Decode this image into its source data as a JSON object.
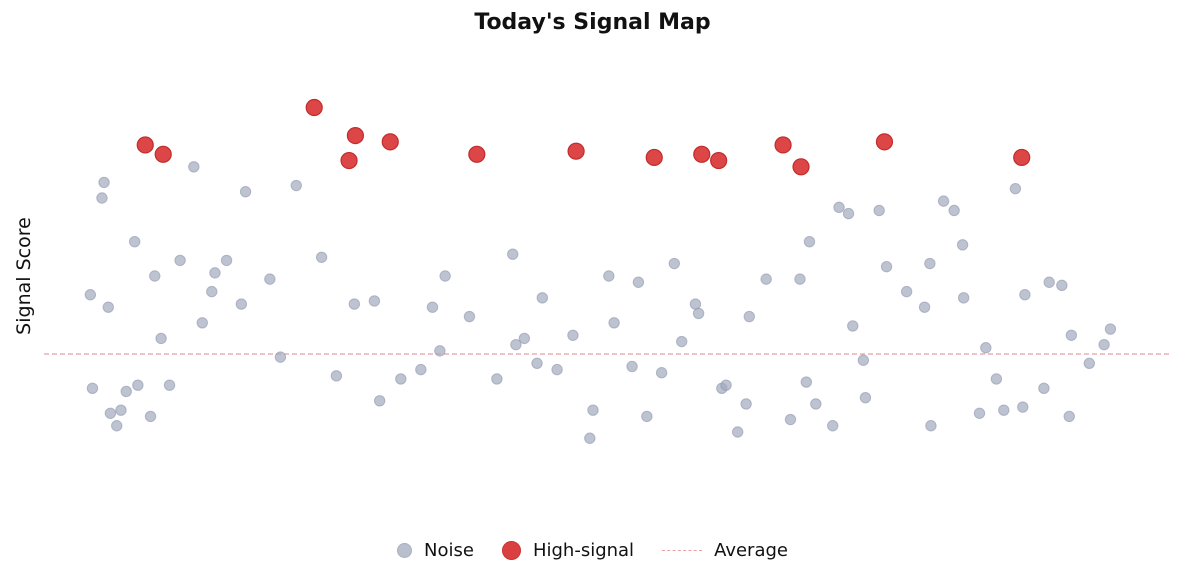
{
  "chart_data": {
    "type": "scatter",
    "title": "Today's Signal Map",
    "ylabel": "Signal Score",
    "xlabel": "",
    "axes_visible": false,
    "grid": false,
    "legend_position": "bottom-center",
    "ylim": [
      -5,
      10
    ],
    "xlim": [
      0,
      100
    ],
    "average": 0,
    "colors": {
      "noise": "#a3aabd",
      "high_signal": "#d93636",
      "average": "#e8a0a0"
    },
    "legend": {
      "noise_label": "Noise",
      "high_label": "High-signal",
      "avg_label": "Average"
    },
    "series": [
      {
        "name": "High-signal",
        "points": [
          [
            5.8,
            6.7
          ],
          [
            7.5,
            6.4
          ],
          [
            21.8,
            7.9
          ],
          [
            25.1,
            6.2
          ],
          [
            25.7,
            7.0
          ],
          [
            29.0,
            6.8
          ],
          [
            37.2,
            6.4
          ],
          [
            46.6,
            6.5
          ],
          [
            54.0,
            6.3
          ],
          [
            58.5,
            6.4
          ],
          [
            60.1,
            6.2
          ],
          [
            66.2,
            6.7
          ],
          [
            67.9,
            6.0
          ],
          [
            75.8,
            6.8
          ],
          [
            88.8,
            6.3
          ]
        ]
      },
      {
        "name": "Noise",
        "points": [
          [
            0.6,
            1.9
          ],
          [
            1.7,
            5.0
          ],
          [
            1.9,
            5.5
          ],
          [
            2.3,
            1.5
          ],
          [
            10.4,
            6.0
          ],
          [
            15.3,
            5.2
          ],
          [
            20.1,
            5.4
          ],
          [
            71.5,
            4.7
          ],
          [
            72.4,
            4.5
          ],
          [
            75.3,
            4.6
          ],
          [
            81.4,
            4.9
          ],
          [
            82.4,
            4.6
          ],
          [
            83.2,
            3.5
          ],
          [
            88.2,
            5.3
          ],
          [
            68.7,
            3.6
          ],
          [
            7.3,
            0.5
          ],
          [
            0.8,
            -1.1
          ],
          [
            2.5,
            -1.9
          ],
          [
            3.1,
            -2.3
          ],
          [
            3.5,
            -1.8
          ],
          [
            4.0,
            -1.2
          ],
          [
            5.1,
            -1.0
          ],
          [
            6.3,
            -2.0
          ],
          [
            8.1,
            -1.0
          ],
          [
            4.8,
            3.6
          ],
          [
            6.7,
            2.5
          ],
          [
            12.4,
            2.6
          ],
          [
            30.0,
            -0.8
          ],
          [
            41.7,
            0.5
          ],
          [
            50.2,
            1.0
          ],
          [
            60.4,
            -1.1
          ],
          [
            79.6,
            1.5
          ],
          [
            92.6,
            2.2
          ],
          [
            93.5,
            0.6
          ],
          [
            95.2,
            -0.3
          ],
          [
            14.9,
            1.6
          ],
          [
            25.6,
            1.6
          ],
          [
            34.2,
            2.5
          ],
          [
            40.9,
            0.3
          ],
          [
            44.8,
            -0.5
          ],
          [
            48.2,
            -1.8
          ],
          [
            52.5,
            2.3
          ],
          [
            56.6,
            0.4
          ],
          [
            62.7,
            -1.6
          ],
          [
            66.9,
            -2.1
          ],
          [
            70.9,
            -2.3
          ],
          [
            73.8,
            -0.2
          ],
          [
            84.8,
            -1.9
          ],
          [
            88.9,
            -1.7
          ],
          [
            93.3,
            -2.0
          ],
          [
            12.1,
            2.0
          ],
          [
            13.5,
            3.0
          ],
          [
            27.5,
            1.7
          ],
          [
            33.0,
            1.5
          ],
          [
            39.1,
            -0.8
          ],
          [
            43.4,
            1.8
          ],
          [
            47.9,
            -2.7
          ],
          [
            51.9,
            -0.4
          ],
          [
            55.9,
            2.9
          ],
          [
            60.8,
            -1.0
          ],
          [
            64.6,
            2.4
          ],
          [
            68.4,
            -0.9
          ],
          [
            74.0,
            -1.4
          ],
          [
            77.9,
            2.0
          ],
          [
            80.2,
            -2.3
          ],
          [
            86.4,
            -0.8
          ],
          [
            90.9,
            -1.1
          ],
          [
            9.1,
            3.0
          ],
          [
            17.6,
            2.4
          ],
          [
            22.5,
            3.1
          ],
          [
            31.9,
            -0.5
          ],
          [
            36.5,
            1.2
          ],
          [
            40.6,
            3.2
          ],
          [
            46.3,
            0.6
          ],
          [
            54.7,
            -0.6
          ],
          [
            57.9,
            1.6
          ],
          [
            63.0,
            1.2
          ],
          [
            67.8,
            2.4
          ],
          [
            72.8,
            0.9
          ],
          [
            80.1,
            2.9
          ],
          [
            85.4,
            0.2
          ],
          [
            89.1,
            1.9
          ],
          [
            97.2,
            0.8
          ],
          [
            11.2,
            1.0
          ],
          [
            18.6,
            -0.1
          ],
          [
            23.9,
            -0.7
          ],
          [
            28.0,
            -1.5
          ],
          [
            33.7,
            0.1
          ],
          [
            42.9,
            -0.3
          ],
          [
            49.7,
            2.5
          ],
          [
            53.3,
            -2.0
          ],
          [
            58.2,
            1.3
          ],
          [
            61.9,
            -2.5
          ],
          [
            69.3,
            -1.6
          ],
          [
            76.0,
            2.8
          ],
          [
            83.3,
            1.8
          ],
          [
            87.1,
            -1.8
          ],
          [
            91.4,
            2.3
          ],
          [
            96.6,
            0.3
          ]
        ]
      }
    ]
  }
}
